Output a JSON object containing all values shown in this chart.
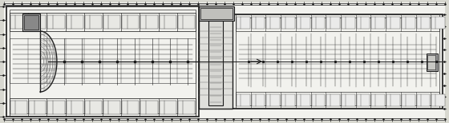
{
  "bg": "#d8d8d0",
  "white": "#f2f2ee",
  "black": "#1a1a1a",
  "dark": "#333333",
  "mid": "#666666",
  "lgray": "#aaaaaa",
  "mgray": "#888888",
  "figsize": [
    5.6,
    1.54
  ],
  "dpi": 100
}
